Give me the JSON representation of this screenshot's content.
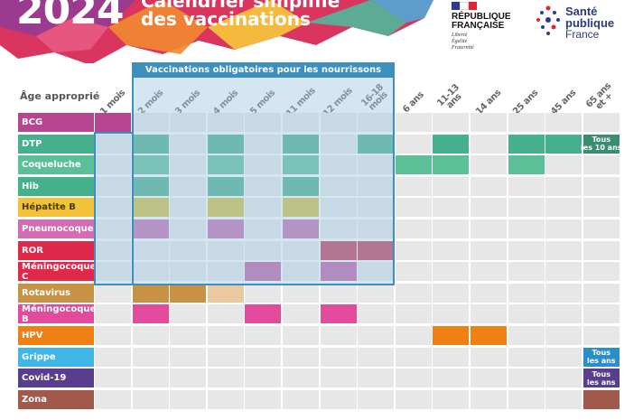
{
  "header": {
    "year": "2024",
    "title_line1": "Calendrier simplifié",
    "title_line2": "des vaccinations",
    "republique_line1": "RÉPUBLIQUE",
    "republique_line2": "FRANÇAISE",
    "motto_1": "Liberté",
    "motto_2": "Égalité",
    "motto_3": "Fraternité",
    "spf_line1": "Santé",
    "spf_line2": "publique",
    "spf_line3": "France"
  },
  "table": {
    "age_label": "Âge approprié",
    "mandatory_title": "Vaccinations obligatoires pour les nourrissons",
    "ages": [
      "1 mois",
      "2 mois",
      "3 mois",
      "4 mois",
      "5 mois",
      "11 mois",
      "12 mois",
      "16-18\nmois",
      "6 ans",
      "11-13\nans",
      "14 ans",
      "25 ans",
      "45 ans",
      "65 ans\net +"
    ],
    "vaccines": [
      {
        "name": "BCG",
        "color": "#b5468f",
        "cells": [
          0
        ],
        "cell_color": "#b5468f"
      },
      {
        "name": "DTP",
        "color": "#45b08c",
        "cells": [
          1,
          3,
          5,
          7,
          9,
          11,
          12
        ],
        "cell_color": "#45b08c",
        "note": "Tous\nles 10 ans",
        "note_color": "#3a8e70"
      },
      {
        "name": "Coqueluche",
        "color": "#5bbf98",
        "cells": [
          1,
          3,
          5,
          8,
          9,
          11
        ],
        "cell_color": "#5bbf98"
      },
      {
        "name": "Hib",
        "color": "#45b08c",
        "cells": [
          1,
          3,
          5
        ],
        "cell_color": "#45b08c"
      },
      {
        "name": "Hépatite B",
        "color": "#f2c23a",
        "cells": [
          1,
          3,
          5
        ],
        "cell_color": "#d6bd3c",
        "label_text_color": "#4a3a00"
      },
      {
        "name": "Pneumocoque",
        "color": "#d46cb4",
        "cells": [
          1,
          3,
          5
        ],
        "cell_color": "#c46aae"
      },
      {
        "name": "ROR",
        "color": "#e0284a",
        "cells": [
          6,
          7
        ],
        "cell_color": "#c23452"
      },
      {
        "name": "Méningocoque C",
        "color": "#e0284a",
        "cells": [
          4,
          6
        ],
        "cell_color": "#c25aa4"
      },
      {
        "name": "Rotavirus",
        "color": "#c89245",
        "cells": [
          1,
          2,
          3
        ],
        "cell_color": "#c89245",
        "light_cells": [
          3
        ]
      },
      {
        "name": "Méningocoque B",
        "color": "#e34a9c",
        "cells": [
          1,
          4,
          6
        ],
        "cell_color": "#e34a9c"
      },
      {
        "name": "HPV",
        "color": "#f08014",
        "cells": [
          9,
          10
        ],
        "cell_color": "#f08014"
      },
      {
        "name": "Grippe",
        "color": "#3fb6e6",
        "cells": [],
        "cell_color": "#3fb6e6",
        "note": "Tous\nles ans",
        "note_color": "#2b8ec9"
      },
      {
        "name": "Covid-19",
        "color": "#5a3e8e",
        "cells": [],
        "cell_color": "#5a3e8e",
        "note": "Tous\nles ans",
        "note_color": "#5a3e8e"
      },
      {
        "name": "Zona",
        "color": "#a0594a",
        "cells": [
          13
        ],
        "cell_color": "#a0594a"
      }
    ]
  }
}
